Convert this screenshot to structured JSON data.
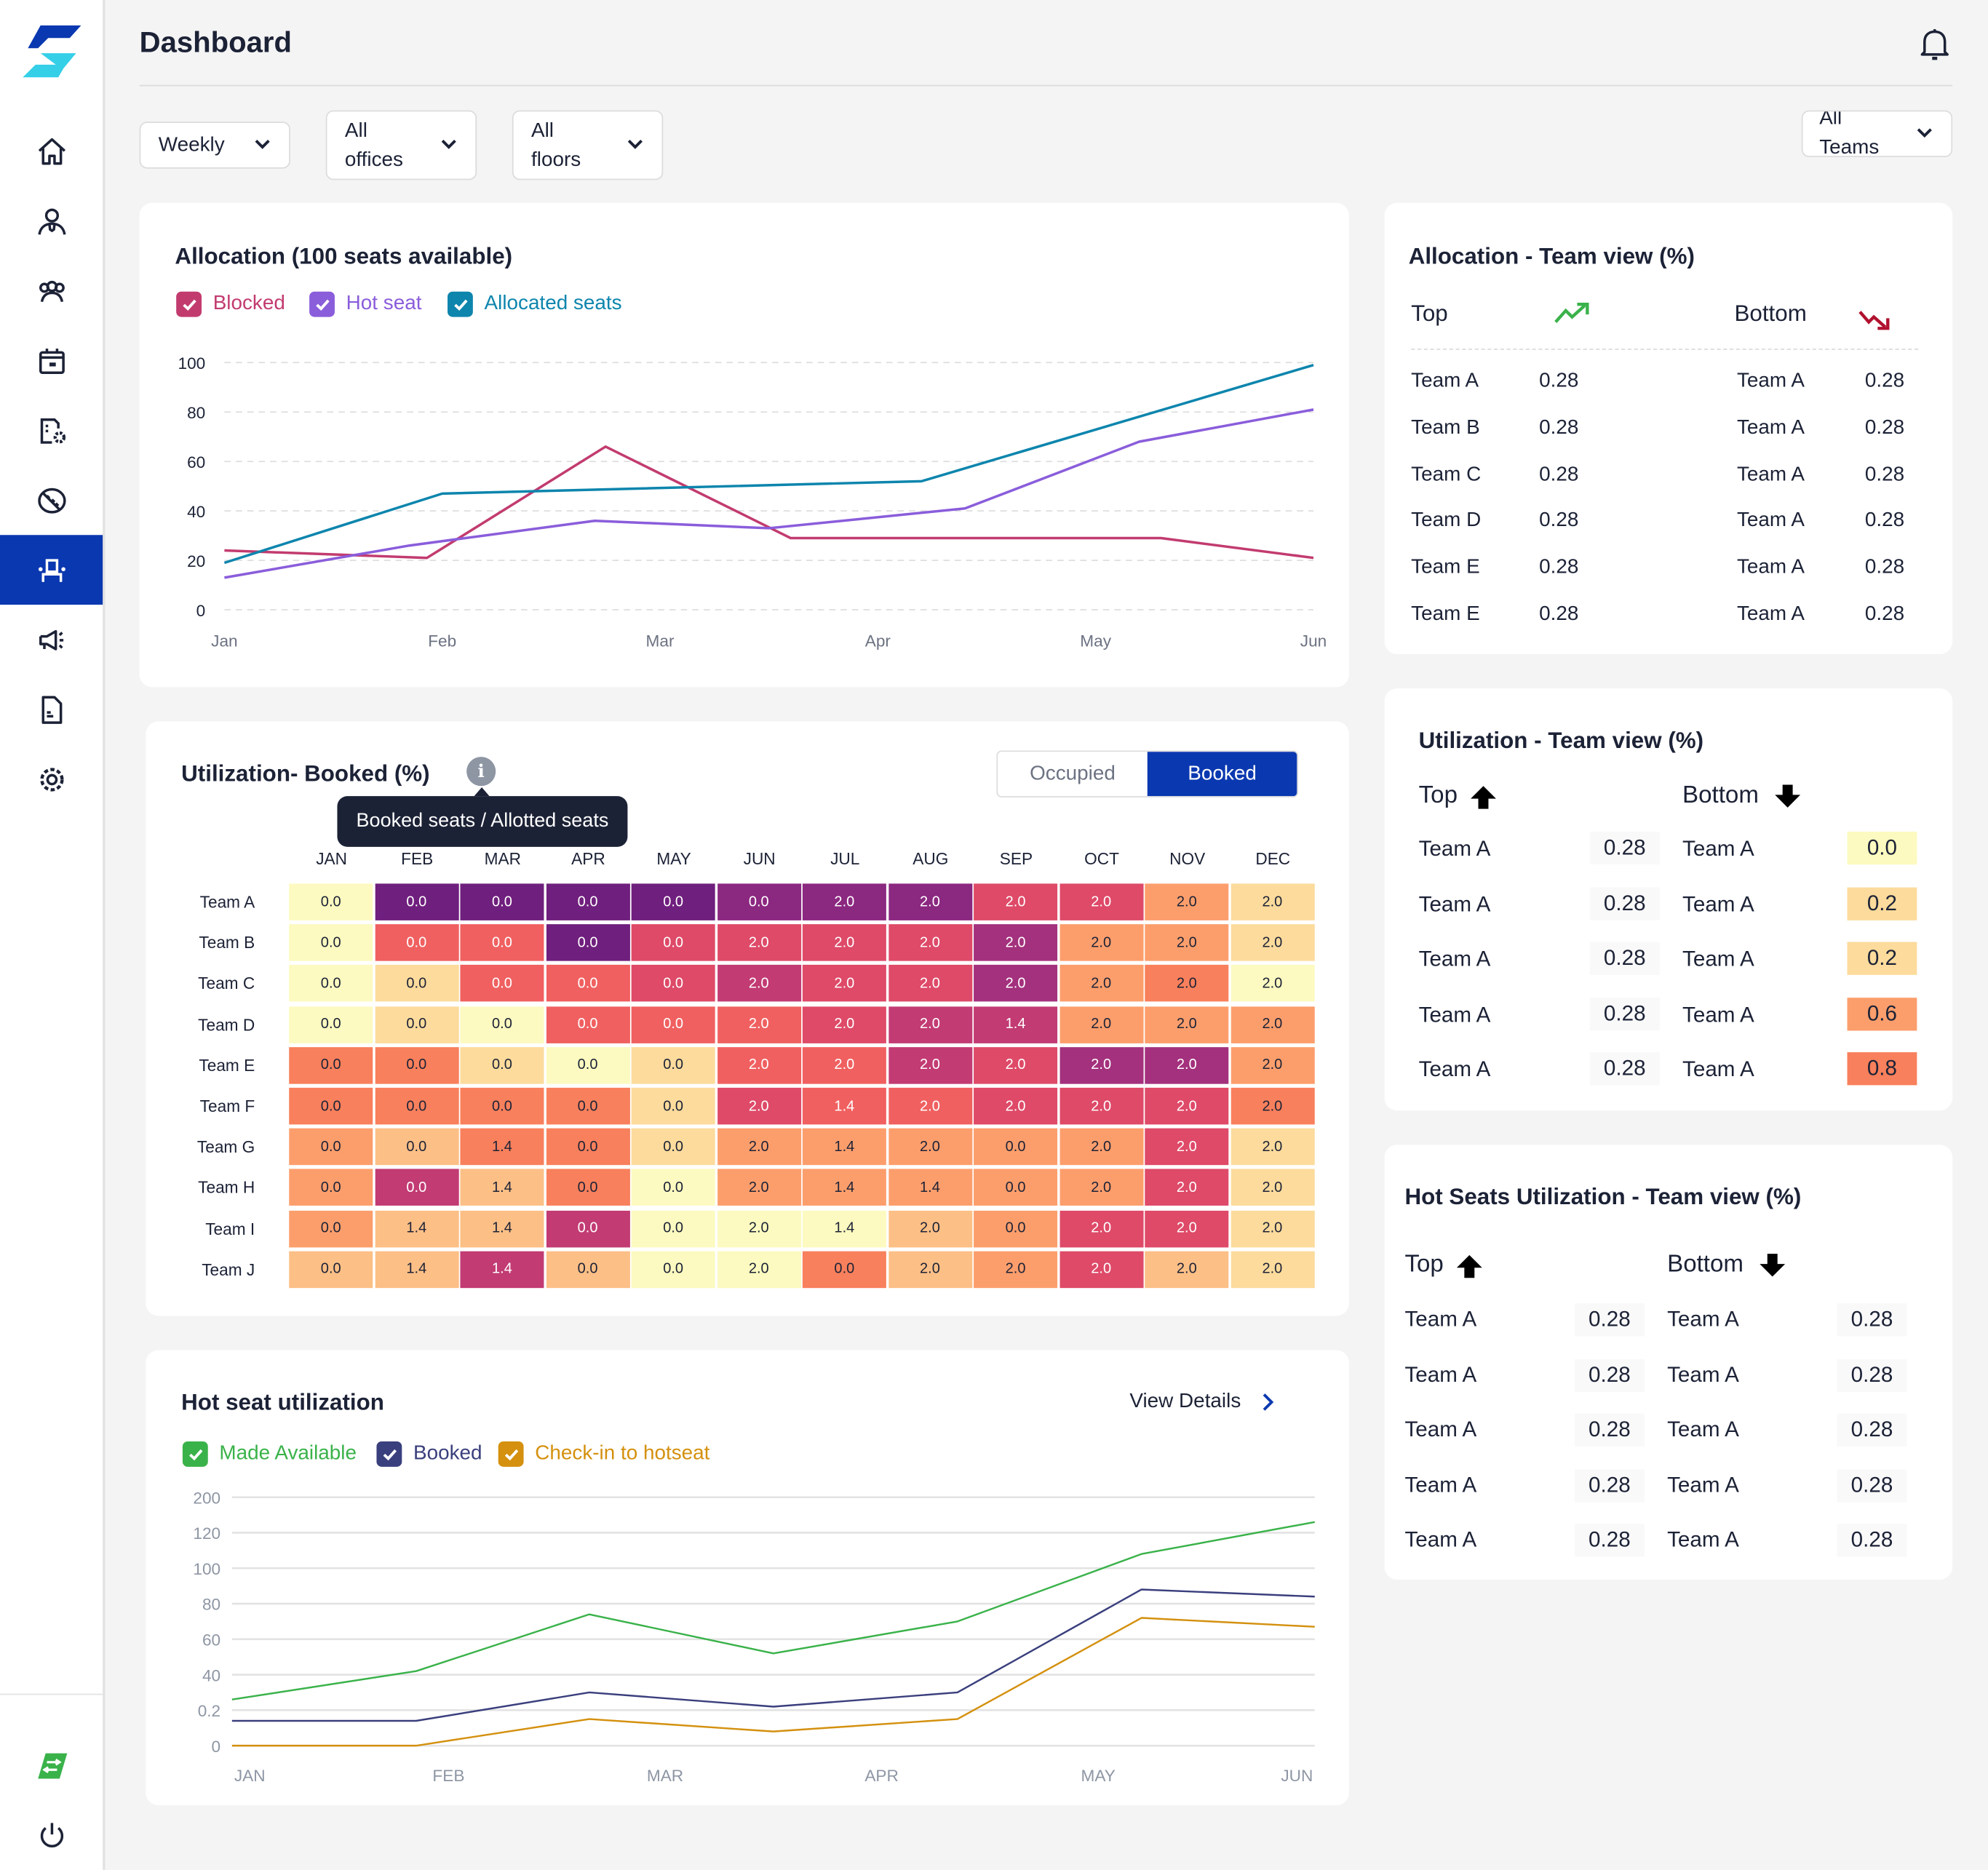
{
  "app": {
    "title": "Dashboard"
  },
  "sidebar": {
    "items": [
      {
        "name": "home",
        "icon": "home-icon",
        "active": false
      },
      {
        "name": "user",
        "icon": "user-icon",
        "active": false
      },
      {
        "name": "teams",
        "icon": "team-icon",
        "active": false
      },
      {
        "name": "calendar",
        "icon": "calendar-icon",
        "active": false
      },
      {
        "name": "floor-settings",
        "icon": "floor-settings-icon",
        "active": false
      },
      {
        "name": "parking",
        "icon": "parking-icon",
        "active": false
      },
      {
        "name": "seats",
        "icon": "seat-icon",
        "active": true
      },
      {
        "name": "announcements",
        "icon": "megaphone-icon",
        "active": false
      },
      {
        "name": "reports",
        "icon": "document-icon",
        "active": false
      },
      {
        "name": "settings",
        "icon": "gear-icon",
        "active": false
      }
    ],
    "bottom": [
      {
        "name": "switch-app",
        "icon": "switch-logo-icon"
      },
      {
        "name": "logout",
        "icon": "power-icon"
      }
    ]
  },
  "header": {
    "title": "Dashboard",
    "notification_icon": "bell-icon"
  },
  "filters": {
    "period": {
      "line1": "Weekly",
      "line2": ""
    },
    "office": {
      "line1": "All",
      "line2": "offices"
    },
    "floor": {
      "line1": "All",
      "line2": "floors"
    },
    "team": {
      "line1": "All",
      "line2": "Teams"
    }
  },
  "allocation_chart": {
    "title": "Allocation (100 seats available)",
    "legend": [
      {
        "label": "Blocked",
        "color": "#c23b6f",
        "checked": true
      },
      {
        "label": "Hot seat",
        "color": "#8a5ddb",
        "checked": true
      },
      {
        "label": "Allocated seats",
        "color": "#0d85ad",
        "checked": true
      }
    ]
  },
  "utilization_heatmap": {
    "title": "Utilization- Booked (%)",
    "info_tooltip": "Booked seats / Allotted seats",
    "toggle": {
      "options": [
        "Occupied",
        "Booked"
      ],
      "selected": "Booked"
    }
  },
  "hot_seat_chart": {
    "title": "Hot seat utilization",
    "view_details": "View Details",
    "legend": [
      {
        "label": "Made Available",
        "color": "#3ab24a",
        "checked": true
      },
      {
        "label": "Booked",
        "color": "#3a3f7d",
        "checked": true
      },
      {
        "label": "Check-in to hotseat",
        "color": "#d4900e",
        "checked": true
      }
    ]
  },
  "allocation_team_view": {
    "title": "Allocation - Team view (%)",
    "top_label": "Top",
    "bottom_label": "Bottom",
    "top": [
      {
        "team": "Team A",
        "value": "0.28"
      },
      {
        "team": "Team B",
        "value": "0.28"
      },
      {
        "team": "Team C",
        "value": "0.28"
      },
      {
        "team": "Team D",
        "value": "0.28"
      },
      {
        "team": "Team E",
        "value": "0.28"
      },
      {
        "team": "Team E",
        "value": "0.28"
      }
    ],
    "bottom": [
      {
        "team": "Team A",
        "value": "0.28"
      },
      {
        "team": "Team A",
        "value": "0.28"
      },
      {
        "team": "Team A",
        "value": "0.28"
      },
      {
        "team": "Team A",
        "value": "0.28"
      },
      {
        "team": "Team A",
        "value": "0.28"
      },
      {
        "team": "Team A",
        "value": "0.28"
      }
    ]
  },
  "utilization_team_view": {
    "title": "Utilization - Team view (%)",
    "top_label": "Top",
    "bottom_label": "Bottom",
    "top": [
      {
        "team": "Team A",
        "value": "0.28"
      },
      {
        "team": "Team A",
        "value": "0.28"
      },
      {
        "team": "Team A",
        "value": "0.28"
      },
      {
        "team": "Team A",
        "value": "0.28"
      },
      {
        "team": "Team A",
        "value": "0.28"
      }
    ],
    "bottom": [
      {
        "team": "Team A",
        "value": "0.0",
        "color": "#fcfac0"
      },
      {
        "team": "Team A",
        "value": "0.2",
        "color": "#fcdb9c"
      },
      {
        "team": "Team A",
        "value": "0.2",
        "color": "#fcdb9c"
      },
      {
        "team": "Team A",
        "value": "0.6",
        "color": "#fb9e6c"
      },
      {
        "team": "Team A",
        "value": "0.8",
        "color": "#f8805c"
      }
    ]
  },
  "hot_seats_team_view": {
    "title": "Hot Seats Utilization - Team view (%)",
    "top_label": "Top",
    "bottom_label": "Bottom",
    "top": [
      {
        "team": "Team A",
        "value": "0.28"
      },
      {
        "team": "Team A",
        "value": "0.28"
      },
      {
        "team": "Team A",
        "value": "0.28"
      },
      {
        "team": "Team A",
        "value": "0.28"
      },
      {
        "team": "Team A",
        "value": "0.28"
      }
    ],
    "bottom": [
      {
        "team": "Team A",
        "value": "0.28"
      },
      {
        "team": "Team A",
        "value": "0.28"
      },
      {
        "team": "Team A",
        "value": "0.28"
      },
      {
        "team": "Team A",
        "value": "0.28"
      },
      {
        "team": "Team A",
        "value": "0.28"
      }
    ]
  },
  "chart_data": [
    {
      "type": "line",
      "title": "Allocation (100 seats available)",
      "categories": [
        "Jan",
        "Feb",
        "Mar",
        "Apr",
        "May",
        "Jun"
      ],
      "x": [
        0,
        1,
        1.8,
        2.9,
        3.6,
        5
      ],
      "yticks": [
        0,
        20,
        40,
        60,
        80,
        100
      ],
      "ylim": [
        0,
        100
      ],
      "grid": true,
      "legend": "top-left",
      "series": [
        {
          "name": "Blocked",
          "color": "#c23b6f",
          "points": [
            [
              0,
              24
            ],
            [
              0.93,
              21
            ],
            [
              1.75,
              66
            ],
            [
              2.6,
              29
            ],
            [
              4.3,
              29
            ],
            [
              5,
              21
            ]
          ]
        },
        {
          "name": "Hot seat",
          "color": "#8a5ddb",
          "points": [
            [
              0,
              13
            ],
            [
              0.85,
              26
            ],
            [
              1.7,
              36
            ],
            [
              2.5,
              33
            ],
            [
              3.4,
              41
            ],
            [
              4.2,
              68
            ],
            [
              5,
              81
            ]
          ]
        },
        {
          "name": "Allocated seats",
          "color": "#0d85ad",
          "points": [
            [
              0,
              19
            ],
            [
              1,
              47
            ],
            [
              3.2,
              52
            ],
            [
              5,
              99
            ]
          ]
        }
      ]
    },
    {
      "type": "heatmap",
      "title": "Utilization- Booked (%)",
      "columns": [
        "JAN",
        "FEB",
        "MAR",
        "APR",
        "MAY",
        "JUN",
        "JUL",
        "AUG",
        "SEP",
        "OCT",
        "NOV",
        "DEC"
      ],
      "rows": [
        "Team A",
        "Team B",
        "Team C",
        "Team D",
        "Team E",
        "Team F",
        "Team G",
        "Team H",
        "Team I",
        "Team J"
      ],
      "values": [
        [
          "0.0",
          "0.0",
          "0.0",
          "0.0",
          "0.0",
          "0.0",
          "2.0",
          "2.0",
          "2.0",
          "2.0",
          "2.0",
          "2.0"
        ],
        [
          "0.0",
          "0.0",
          "0.0",
          "0.0",
          "0.0",
          "2.0",
          "2.0",
          "2.0",
          "2.0",
          "2.0",
          "2.0",
          "2.0"
        ],
        [
          "0.0",
          "0.0",
          "0.0",
          "0.0",
          "0.0",
          "2.0",
          "2.0",
          "2.0",
          "2.0",
          "2.0",
          "2.0",
          "2.0"
        ],
        [
          "0.0",
          "0.0",
          "0.0",
          "0.0",
          "0.0",
          "2.0",
          "2.0",
          "2.0",
          "1.4",
          "2.0",
          "2.0",
          "2.0"
        ],
        [
          "0.0",
          "0.0",
          "0.0",
          "0.0",
          "0.0",
          "2.0",
          "2.0",
          "2.0",
          "2.0",
          "2.0",
          "2.0",
          "2.0"
        ],
        [
          "0.0",
          "0.0",
          "0.0",
          "0.0",
          "0.0",
          "2.0",
          "1.4",
          "2.0",
          "2.0",
          "2.0",
          "2.0",
          "2.0"
        ],
        [
          "0.0",
          "0.0",
          "1.4",
          "0.0",
          "0.0",
          "2.0",
          "1.4",
          "2.0",
          "0.0",
          "2.0",
          "2.0",
          "2.0"
        ],
        [
          "0.0",
          "0.0",
          "1.4",
          "0.0",
          "0.0",
          "2.0",
          "1.4",
          "1.4",
          "0.0",
          "2.0",
          "2.0",
          "2.0"
        ],
        [
          "0.0",
          "1.4",
          "1.4",
          "0.0",
          "0.0",
          "2.0",
          "1.4",
          "2.0",
          "0.0",
          "2.0",
          "2.0",
          "2.0"
        ],
        [
          "0.0",
          "1.4",
          "1.4",
          "0.0",
          "0.0",
          "2.0",
          "0.0",
          "2.0",
          "2.0",
          "2.0",
          "2.0",
          "2.0"
        ]
      ],
      "colors": [
        [
          "#fcfac0",
          "#6f1f7d",
          "#6f1f7d",
          "#6f1f7d",
          "#6f1f7d",
          "#8b2880",
          "#8b2880",
          "#8b2880",
          "#de4a68",
          "#de4a68",
          "#fc9e6c",
          "#fcdb9c"
        ],
        [
          "#fcfac0",
          "#f06060",
          "#f06060",
          "#6f1f7d",
          "#de4a68",
          "#de4a68",
          "#de4a68",
          "#de4a68",
          "#a3317d",
          "#fc9e6c",
          "#fc9e6c",
          "#fcdb9c"
        ],
        [
          "#fcfac0",
          "#fcdb9c",
          "#f06060",
          "#f06060",
          "#de4a68",
          "#c23b73",
          "#de4a68",
          "#de4a68",
          "#a3317d",
          "#fc9e6c",
          "#f8805c",
          "#fcfac0"
        ],
        [
          "#fcfac0",
          "#fcdb9c",
          "#fcfac0",
          "#f06060",
          "#f06060",
          "#f06060",
          "#de4a68",
          "#c23b73",
          "#c23b73",
          "#fc9e6c",
          "#fc9e6c",
          "#fc9e6c"
        ],
        [
          "#f8805c",
          "#f8805c",
          "#fcdb9c",
          "#fcfac0",
          "#fcdb9c",
          "#f06060",
          "#f06060",
          "#c23b73",
          "#de4a68",
          "#a3317d",
          "#a3317d",
          "#fc9e6c"
        ],
        [
          "#f8805c",
          "#f8805c",
          "#f8805c",
          "#f8805c",
          "#fcdb9c",
          "#de4a68",
          "#f06060",
          "#f06060",
          "#de4a68",
          "#de4a68",
          "#de4a68",
          "#f8805c"
        ],
        [
          "#fc9e6c",
          "#fcbf86",
          "#f8805c",
          "#f8805c",
          "#fcdb9c",
          "#fc9e6c",
          "#fc9e6c",
          "#fc9e6c",
          "#fc9e6c",
          "#fc9e6c",
          "#de4a68",
          "#fcdb9c"
        ],
        [
          "#fc9e6c",
          "#c23b73",
          "#fcbf86",
          "#f8805c",
          "#fcfac0",
          "#fc9e6c",
          "#fc9e6c",
          "#fc9e6c",
          "#fc9e6c",
          "#fc9e6c",
          "#de4a68",
          "#fcdb9c"
        ],
        [
          "#fc9e6c",
          "#fcbf86",
          "#fcbf86",
          "#c23b73",
          "#fcfac0",
          "#fcfac0",
          "#fcfac0",
          "#fcbf86",
          "#fc9e6c",
          "#de4a68",
          "#de4a68",
          "#fcdb9c"
        ],
        [
          "#fcbf86",
          "#fcbf86",
          "#c23b73",
          "#fcbf86",
          "#fcfac0",
          "#fcfac0",
          "#f8805c",
          "#fcbf86",
          "#fc9e6c",
          "#de4a68",
          "#fcbf86",
          "#fcdb9c"
        ]
      ]
    },
    {
      "type": "line",
      "title": "Hot seat utilization",
      "categories": [
        "JAN",
        "FEB",
        "MAR",
        "APR",
        "MAY",
        "JUN"
      ],
      "yticks": [
        "0",
        "0.2",
        "40",
        "60",
        "80",
        "100",
        "120",
        "200"
      ],
      "grid": true,
      "legend": "top-left",
      "series": [
        {
          "name": "Made Available",
          "color": "#3ab24a",
          "points": [
            [
              0,
              1.3
            ],
            [
              0.85,
              2.1
            ],
            [
              1.65,
              3.7
            ],
            [
              2.5,
              2.6
            ],
            [
              3.35,
              3.5
            ],
            [
              4.2,
              5.4
            ],
            [
              5.0,
              6.3
            ]
          ]
        },
        {
          "name": "Booked",
          "color": "#3a3f7d",
          "points": [
            [
              0,
              0.7
            ],
            [
              0.85,
              0.7
            ],
            [
              1.65,
              1.5
            ],
            [
              2.5,
              1.1
            ],
            [
              3.35,
              1.5
            ],
            [
              4.2,
              4.4
            ],
            [
              5.0,
              4.2
            ]
          ]
        },
        {
          "name": "Check-in to hotseat",
          "color": "#d4900e",
          "points": [
            [
              0,
              0
            ],
            [
              0.85,
              0
            ],
            [
              1.65,
              0.75
            ],
            [
              2.5,
              0.4
            ],
            [
              3.35,
              0.75
            ],
            [
              4.2,
              3.6
            ],
            [
              5.0,
              3.35
            ]
          ]
        }
      ]
    }
  ]
}
